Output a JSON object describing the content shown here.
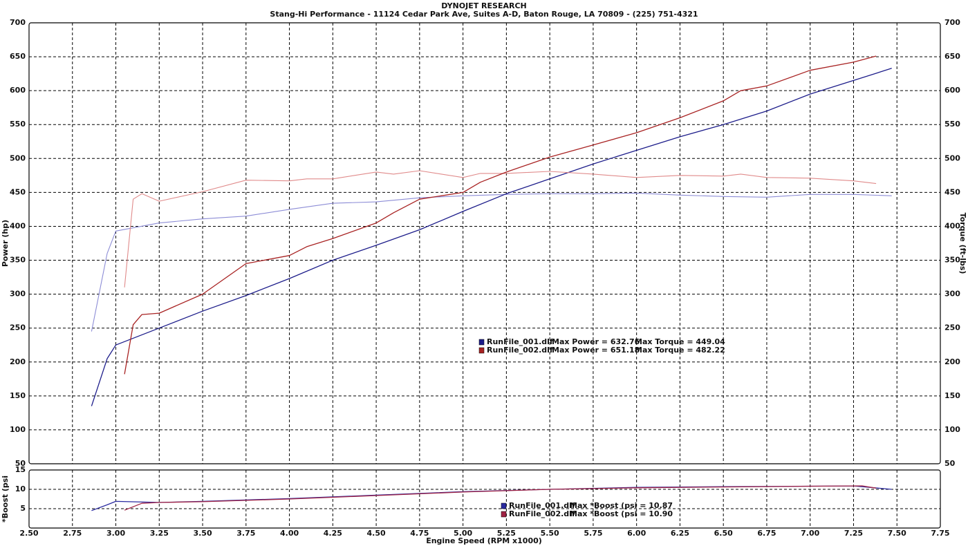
{
  "chart_data": [
    {
      "type": "line",
      "title": "DYNOJET RESEARCH",
      "subtitle": "Stang-Hi Performance - 11124 Cedar Park Ave, Suites A-D, Baton Rouge, LA 70809 - (225) 751-4321",
      "y_label": "Power (hp)",
      "y2_label": "Torque (ft-lbs)",
      "xlim": [
        2.5,
        7.75
      ],
      "xticks": [
        2.75,
        3.0,
        3.25,
        3.5,
        3.75,
        4.0,
        4.25,
        4.5,
        4.75,
        5.0,
        5.25,
        5.5,
        5.75,
        6.0,
        6.25,
        6.5,
        6.75,
        7.0,
        7.25,
        7.5
      ],
      "ylim": [
        50,
        700
      ],
      "yticks": [
        50,
        100,
        150,
        200,
        250,
        300,
        350,
        400,
        450,
        500,
        550,
        600,
        650,
        700
      ],
      "y2lim": [
        50,
        700
      ],
      "y2ticks": [
        50,
        100,
        150,
        200,
        250,
        300,
        350,
        400,
        450,
        500,
        550,
        600,
        650,
        700
      ],
      "grid": true,
      "runs": [
        {
          "name": "RunFile_001.dlf",
          "color": "#1c1c8a",
          "torque_color": "#8c8cd6",
          "power_stat": "Max Power = 632.76",
          "torque_stat": "Max Torque = 449.04",
          "x": [
            2.86,
            2.95,
            3.0,
            3.25,
            3.5,
            3.75,
            4.0,
            4.25,
            4.5,
            4.75,
            5.0,
            5.25,
            5.5,
            5.75,
            6.0,
            6.25,
            6.5,
            6.75,
            7.0,
            7.25,
            7.47
          ],
          "power": [
            135,
            205,
            225,
            250,
            275,
            298,
            323,
            350,
            372,
            395,
            422,
            448,
            470,
            492,
            512,
            532,
            550,
            570,
            595,
            615,
            633
          ],
          "torque": [
            245,
            360,
            393,
            405,
            411,
            415,
            425,
            434,
            436,
            442,
            445,
            447,
            448,
            448,
            449,
            446,
            444,
            443,
            447,
            447,
            445
          ]
        },
        {
          "name": "RunFile_002.dlf",
          "color": "#a82222",
          "torque_color": "#e08a8a",
          "power_stat": "Max Power = 651.18",
          "torque_stat": "Max Torque = 482.22",
          "x": [
            3.05,
            3.1,
            3.15,
            3.25,
            3.5,
            3.75,
            4.0,
            4.1,
            4.25,
            4.5,
            4.6,
            4.75,
            5.0,
            5.1,
            5.25,
            5.5,
            5.75,
            6.0,
            6.25,
            6.5,
            6.6,
            6.75,
            7.0,
            7.25,
            7.38
          ],
          "power": [
            182,
            255,
            270,
            272,
            300,
            345,
            357,
            370,
            382,
            405,
            420,
            440,
            450,
            465,
            480,
            502,
            520,
            538,
            560,
            585,
            600,
            607,
            630,
            642,
            651
          ],
          "torque": [
            310,
            440,
            448,
            437,
            451,
            468,
            467,
            470,
            470,
            480,
            477,
            482,
            472,
            478,
            478,
            481,
            477,
            472,
            475,
            474,
            477,
            472,
            471,
            467,
            463
          ]
        }
      ]
    },
    {
      "type": "line",
      "x_label": "Engine Speed (RPM x1000)",
      "y_label": "*Boost (psi",
      "xlim": [
        2.5,
        7.75
      ],
      "xticks": [
        {
          "value": 2.5,
          "label": "2.50"
        },
        {
          "value": 2.75,
          "label": "2.75"
        },
        {
          "value": 3.0,
          "label": "3.00"
        },
        {
          "value": 3.25,
          "label": "3.25"
        },
        {
          "value": 3.5,
          "label": "3.50"
        },
        {
          "value": 3.75,
          "label": "3.75"
        },
        {
          "value": 4.0,
          "label": "4.00"
        },
        {
          "value": 4.25,
          "label": "4.25"
        },
        {
          "value": 4.5,
          "label": "4.50"
        },
        {
          "value": 4.75,
          "label": "4.75"
        },
        {
          "value": 5.0,
          "label": "5.00"
        },
        {
          "value": 5.25,
          "label": "5.25"
        },
        {
          "value": 5.5,
          "label": "5.50"
        },
        {
          "value": 5.75,
          "label": "5.75"
        },
        {
          "value": 6.0,
          "label": "6.00"
        },
        {
          "value": 6.25,
          "label": "6.25"
        },
        {
          "value": 6.5,
          "label": "6.50"
        },
        {
          "value": 6.75,
          "label": "6.75"
        },
        {
          "value": 7.0,
          "label": "7.00"
        },
        {
          "value": 7.25,
          "label": "7.25"
        },
        {
          "value": 7.5,
          "label": "7.50"
        },
        {
          "value": 7.75,
          "label": "7.75"
        }
      ],
      "ylim": [
        0,
        15
      ],
      "yticks": [
        5,
        10,
        15
      ],
      "grid": true,
      "series": [
        {
          "name": "RunFile_001.dlf",
          "color": "#2a2aa0",
          "stat": "Max *Boost (psi = 10.87",
          "x": [
            2.86,
            2.95,
            3.0,
            3.25,
            3.5,
            4.0,
            4.5,
            5.0,
            5.5,
            6.0,
            6.5,
            7.0,
            7.25,
            7.47
          ],
          "values": [
            4.5,
            6.0,
            6.9,
            6.6,
            6.9,
            7.6,
            8.5,
            9.4,
            10.0,
            10.5,
            10.7,
            10.8,
            10.87,
            10.0
          ]
        },
        {
          "name": "RunFile_002.dlf",
          "color": "#a02244",
          "stat": "Max *Boost (psi = 10.90",
          "x": [
            3.05,
            3.15,
            3.25,
            3.5,
            4.0,
            4.5,
            5.0,
            5.5,
            6.0,
            6.5,
            7.0,
            7.3,
            7.38
          ],
          "values": [
            4.6,
            6.4,
            6.6,
            6.8,
            7.5,
            8.4,
            9.3,
            10.0,
            10.4,
            10.6,
            10.8,
            10.9,
            10.3
          ]
        }
      ]
    }
  ]
}
